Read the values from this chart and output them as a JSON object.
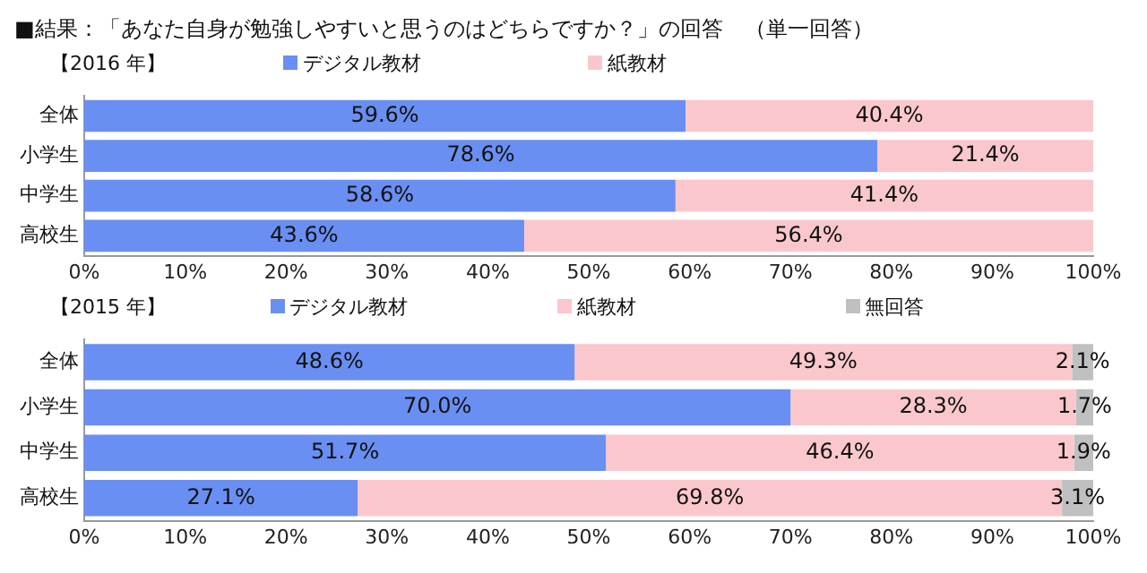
{
  "chart_data": [
    {
      "type": "bar",
      "orientation": "horizontal",
      "stacked": true,
      "title": "■結果：「あなた自身が勉強しやすいと思うのはどちらですか？」の回答　（単一回答）",
      "subtitle": "【2016 年】",
      "categories": [
        "全体",
        "小学生",
        "中学生",
        "高校生"
      ],
      "series": [
        {
          "name": "デジタル教材",
          "color": "#6a8ff2",
          "values": [
            59.6,
            78.6,
            58.6,
            43.6
          ],
          "value_labels": [
            "59.6%",
            "78.6%",
            "58.6%",
            "43.6%"
          ]
        },
        {
          "name": "紙教材",
          "color": "#fac8cc",
          "values": [
            40.4,
            21.4,
            41.4,
            56.4
          ],
          "value_labels": [
            "40.4%",
            "21.4%",
            "41.4%",
            "56.4%"
          ]
        }
      ],
      "xlim": [
        0,
        100
      ],
      "xticks": [
        {
          "value": 0,
          "label": "0%"
        },
        {
          "value": 10,
          "label": "10%"
        },
        {
          "value": 20,
          "label": "20%"
        },
        {
          "value": 30,
          "label": "30%"
        },
        {
          "value": 40,
          "label": "40%"
        },
        {
          "value": 50,
          "label": "50%"
        },
        {
          "value": 60,
          "label": "60%"
        },
        {
          "value": 70,
          "label": "70%"
        },
        {
          "value": 80,
          "label": "80%"
        },
        {
          "value": 90,
          "label": "90%"
        },
        {
          "value": 100,
          "label": "100%"
        }
      ],
      "grid": false,
      "legend": "top"
    },
    {
      "type": "bar",
      "orientation": "horizontal",
      "stacked": true,
      "subtitle": "【2015 年】",
      "categories": [
        "全体",
        "小学生",
        "中学生",
        "高校生"
      ],
      "series": [
        {
          "name": "デジタル教材",
          "color": "#6a8ff2",
          "values": [
            48.6,
            70.0,
            51.7,
            27.1
          ],
          "value_labels": [
            "48.6%",
            "70.0%",
            "51.7%",
            "27.1%"
          ]
        },
        {
          "name": "紙教材",
          "color": "#fac8cc",
          "values": [
            49.3,
            28.3,
            46.4,
            69.8
          ],
          "value_labels": [
            "49.3%",
            "28.3%",
            "46.4%",
            "69.8%"
          ]
        },
        {
          "name": "無回答",
          "color": "#c0c0c0",
          "values": [
            2.1,
            1.7,
            1.9,
            3.1
          ],
          "value_labels": [
            "2.1%",
            "1.7%",
            "1.9%",
            "3.1%"
          ]
        }
      ],
      "xlim": [
        0,
        100
      ],
      "xticks": [
        {
          "value": 0,
          "label": "0%"
        },
        {
          "value": 10,
          "label": "10%"
        },
        {
          "value": 20,
          "label": "20%"
        },
        {
          "value": 30,
          "label": "30%"
        },
        {
          "value": 40,
          "label": "40%"
        },
        {
          "value": 50,
          "label": "50%"
        },
        {
          "value": 60,
          "label": "60%"
        },
        {
          "value": 70,
          "label": "70%"
        },
        {
          "value": 80,
          "label": "80%"
        },
        {
          "value": 90,
          "label": "90%"
        },
        {
          "value": 100,
          "label": "100%"
        }
      ],
      "grid": false,
      "legend": "top"
    }
  ]
}
